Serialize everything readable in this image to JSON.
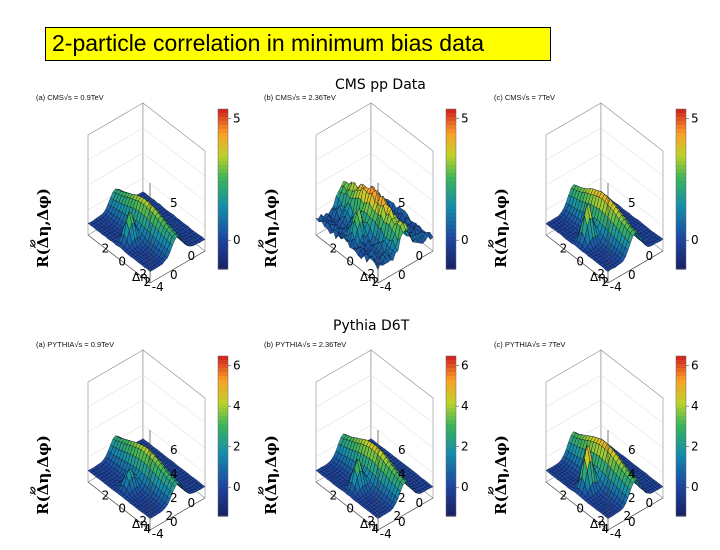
{
  "slide": {
    "title": "2-particle correlation in minimum bias data",
    "section_data": "CMS pp Data",
    "section_mc": "Pythia D6T",
    "accent_color": "#ffff00"
  },
  "chart_data": [
    {
      "type": "surface3d",
      "panel": "(a)",
      "title": "(a) CMS√s = 0.9TeV",
      "zlabel": "R(Δη,Δφ)",
      "xlabel": "Δη",
      "ylabel": "Δφ",
      "x_ticks": [
        "-4",
        "-2",
        "0",
        "2"
      ],
      "y_ticks": [
        "0",
        "2"
      ],
      "z_ticks": [
        "0",
        "5"
      ],
      "colorbar_ticks": [
        "0",
        "5"
      ],
      "peak": 3,
      "ridge": 0.5,
      "noise": 0.05
    },
    {
      "type": "surface3d",
      "panel": "(b)",
      "title": "(b) CMS√s = 2.36TeV",
      "zlabel": "R(Δη,Δφ)",
      "xlabel": "Δη",
      "ylabel": "Δφ",
      "x_ticks": [
        "-4",
        "-2",
        "0",
        "2"
      ],
      "y_ticks": [
        "0",
        "2"
      ],
      "z_ticks": [
        "0",
        "5"
      ],
      "colorbar_ticks": [
        "0",
        "5"
      ],
      "peak": 3,
      "ridge": 0.6,
      "noise": 0.45
    },
    {
      "type": "surface3d",
      "panel": "(c)",
      "title": "(c) CMS√s = 7TeV",
      "zlabel": "R(Δη,Δφ)",
      "xlabel": "Δη",
      "ylabel": "Δφ",
      "x_ticks": [
        "-4",
        "-2",
        "0",
        "2"
      ],
      "y_ticks": [
        "0",
        "2"
      ],
      "z_ticks": [
        "0",
        "5"
      ],
      "colorbar_ticks": [
        "0",
        "5"
      ],
      "peak": 3.8,
      "ridge": 0.6,
      "noise": 0.05
    },
    {
      "type": "surface3d",
      "panel": "(a)",
      "title": "(a) PYTHIA√s = 0.9TeV",
      "zlabel": "R(Δη,Δφ)",
      "xlabel": "Δη",
      "ylabel": "Δφ",
      "x_ticks": [
        "-4",
        "-2",
        "0",
        "2"
      ],
      "y_ticks": [
        "0",
        "2",
        "4"
      ],
      "z_ticks": [
        "0",
        "2",
        "4",
        "6"
      ],
      "colorbar_ticks": [
        "0",
        "2",
        "4",
        "6"
      ],
      "peak": 2,
      "ridge": 0.5,
      "noise": 0.03
    },
    {
      "type": "surface3d",
      "panel": "(b)",
      "title": "(b) PYTHIA√s = 2.36TeV",
      "zlabel": "R(Δη,Δφ)",
      "xlabel": "Δη",
      "ylabel": "Δφ",
      "x_ticks": [
        "-4",
        "-2",
        "0",
        "2"
      ],
      "y_ticks": [
        "0",
        "2",
        "4"
      ],
      "z_ticks": [
        "0",
        "2",
        "4",
        "6"
      ],
      "colorbar_ticks": [
        "0",
        "2",
        "4",
        "6"
      ],
      "peak": 3,
      "ridge": 0.55,
      "noise": 0.03
    },
    {
      "type": "surface3d",
      "panel": "(c)",
      "title": "(c) PYTHIA√s = 7TeV",
      "zlabel": "R(Δη,Δφ)",
      "xlabel": "Δη",
      "ylabel": "Δφ",
      "x_ticks": [
        "-4",
        "-2",
        "0",
        "2"
      ],
      "y_ticks": [
        "0",
        "2",
        "4"
      ],
      "z_ticks": [
        "0",
        "2",
        "4",
        "6"
      ],
      "colorbar_ticks": [
        "0",
        "2",
        "4",
        "6"
      ],
      "peak": 4.5,
      "ridge": 0.6,
      "noise": 0.03
    }
  ]
}
